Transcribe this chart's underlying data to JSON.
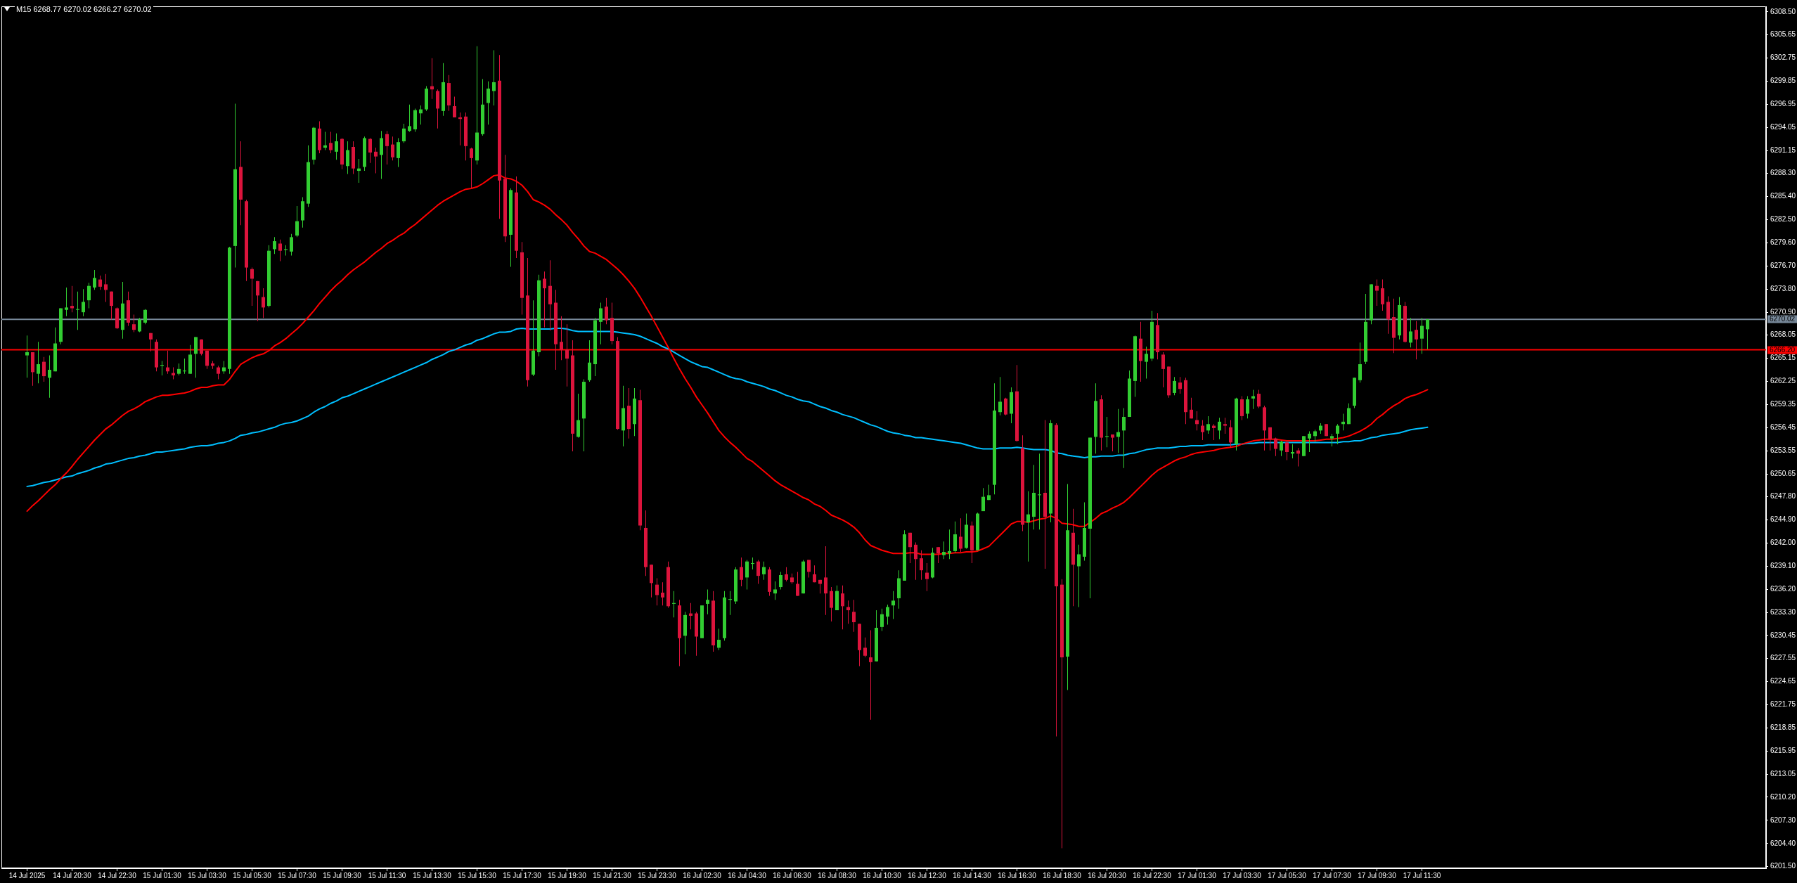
{
  "chart_data": {
    "type": "candlestick",
    "title": "M15 6268.77 6270.02 6266.27 6270.02",
    "categories": [
      "14 Jul 2025",
      null,
      null,
      null,
      null,
      null,
      null,
      null,
      "14 Jul 20:30",
      null,
      null,
      null,
      null,
      null,
      null,
      null,
      "14 Jul 22:30",
      null,
      null,
      null,
      null,
      null,
      null,
      null,
      "15 Jul 01:30",
      null,
      null,
      null,
      null,
      null,
      null,
      null,
      "15 Jul 03:30",
      null,
      null,
      null,
      null,
      null,
      null,
      null,
      "15 Jul 05:30",
      null,
      null,
      null,
      null,
      null,
      null,
      null,
      "15 Jul 07:30",
      null,
      null,
      null,
      null,
      null,
      null,
      null,
      "15 Jul 09:30",
      null,
      null,
      null,
      null,
      null,
      null,
      null,
      "15 Jul 11:30",
      null,
      null,
      null,
      null,
      null,
      null,
      null,
      "15 Jul 13:30",
      null,
      null,
      null,
      null,
      null,
      null,
      null,
      "15 Jul 15:30",
      null,
      null,
      null,
      null,
      null,
      null,
      null,
      "15 Jul 17:30",
      null,
      null,
      null,
      null,
      null,
      null,
      null,
      "15 Jul 19:30",
      null,
      null,
      null,
      null,
      null,
      null,
      null,
      "15 Jul 21:30",
      null,
      null,
      null,
      null,
      null,
      null,
      null,
      "15 Jul 23:30",
      null,
      null,
      null,
      null,
      null,
      null,
      null,
      "16 Jul 02:30",
      null,
      null,
      null,
      null,
      null,
      null,
      null,
      "16 Jul 04:30",
      null,
      null,
      null,
      null,
      null,
      null,
      null,
      "16 Jul 06:30",
      null,
      null,
      null,
      null,
      null,
      null,
      null,
      "16 Jul 08:30",
      null,
      null,
      null,
      null,
      null,
      null,
      null,
      "16 Jul 10:30",
      null,
      null,
      null,
      null,
      null,
      null,
      null,
      "16 Jul 12:30",
      null,
      null,
      null,
      null,
      null,
      null,
      null,
      "16 Jul 14:30",
      null,
      null,
      null,
      null,
      null,
      null,
      null,
      "16 Jul 16:30",
      null,
      null,
      null,
      null,
      null,
      null,
      null,
      "16 Jul 18:30",
      null,
      null,
      null,
      null,
      null,
      null,
      null,
      "16 Jul 20:30",
      null,
      null,
      null,
      null,
      null,
      null,
      null,
      "16 Jul 22:30",
      null,
      null,
      null,
      null,
      null,
      null,
      null,
      "17 Jul 01:30",
      null,
      null,
      null,
      null,
      null,
      null,
      null,
      "17 Jul 03:30",
      null,
      null,
      null,
      null,
      null,
      null,
      null,
      "17 Jul 05:30",
      null,
      null,
      null,
      null,
      null,
      null,
      null,
      "17 Jul 07:30",
      null,
      null,
      null,
      null,
      null,
      null,
      null,
      "17 Jul 09:30",
      null,
      null,
      null,
      null,
      null,
      null,
      null,
      "17 Jul 11:30",
      null
    ],
    "ohlc": [
      [
        6265.5,
        6268.0,
        6262.7,
        6265.9
      ],
      [
        6265.9,
        6265.9,
        6261.7,
        6263.4
      ],
      [
        6263.2,
        6267.2,
        6262.0,
        6264.4
      ],
      [
        6264.7,
        6265.3,
        6262.2,
        6262.9
      ],
      [
        6262.7,
        6265.5,
        6260.2,
        6263.7
      ],
      [
        6263.5,
        6269.0,
        6263.5,
        6267.0
      ],
      [
        6267.2,
        6271.4,
        6266.9,
        6271.4
      ],
      [
        6271.2,
        6274.0,
        6270.4,
        6271.5
      ],
      [
        6271.7,
        6274.2,
        6270.9,
        6271.4
      ],
      [
        6271.2,
        6273.5,
        6268.7,
        6271.3
      ],
      [
        6270.9,
        6273.8,
        6270.4,
        6272.2
      ],
      [
        6272.4,
        6274.6,
        6271.4,
        6274.2
      ],
      [
        6274.0,
        6276.2,
        6273.7,
        6275.2
      ],
      [
        6275.0,
        6275.5,
        6273.7,
        6274.1
      ],
      [
        6274.4,
        6275.7,
        6272.2,
        6273.7
      ],
      [
        6273.5,
        6273.5,
        6270.0,
        6271.7
      ],
      [
        6271.4,
        6271.5,
        6268.8,
        6268.9
      ],
      [
        6268.7,
        6274.7,
        6267.6,
        6272.0
      ],
      [
        6272.4,
        6273.5,
        6269.2,
        6269.6
      ],
      [
        6269.4,
        6270.6,
        6268.4,
        6268.7
      ],
      [
        6268.5,
        6270.2,
        6268.4,
        6270.0
      ],
      [
        6269.6,
        6271.3,
        6269.4,
        6271.2
      ],
      [
        6268.3,
        6268.3,
        6266.0,
        6267.5
      ],
      [
        6267.2,
        6267.5,
        6263.5,
        6264.0
      ],
      [
        6264.2,
        6264.8,
        6263.0,
        6264.3
      ],
      [
        6264.0,
        6266.1,
        6263.2,
        6263.5
      ],
      [
        6263.3,
        6264.0,
        6262.5,
        6263.0
      ],
      [
        6263.2,
        6264.5,
        6263.0,
        6263.8
      ],
      [
        6263.5,
        6265.1,
        6263.2,
        6263.6
      ],
      [
        6263.2,
        6266.8,
        6263.2,
        6265.6
      ],
      [
        6265.7,
        6267.8,
        6262.7,
        6267.8
      ],
      [
        6267.5,
        6267.5,
        6265.5,
        6265.7
      ],
      [
        6266.1,
        6266.1,
        6263.8,
        6264.2
      ],
      [
        6264.5,
        6264.8,
        6263.8,
        6264.2
      ],
      [
        6264.0,
        6264.2,
        6262.5,
        6263.2
      ],
      [
        6263.5,
        6264.8,
        6263.2,
        6264.0
      ],
      [
        6263.8,
        6279.1,
        6263.2,
        6279.0
      ],
      [
        6279.2,
        6297.0,
        6276.5,
        6288.8
      ],
      [
        6289.1,
        6292.3,
        6281.8,
        6285.0
      ],
      [
        6284.8,
        6285.0,
        6274.8,
        6276.5
      ],
      [
        6276.3,
        6276.5,
        6271.7,
        6275.1
      ],
      [
        6274.8,
        6274.8,
        6269.8,
        6273.0
      ],
      [
        6272.8,
        6273.9,
        6270.2,
        6271.5
      ],
      [
        6271.7,
        6279.3,
        6271.5,
        6278.6
      ],
      [
        6278.8,
        6280.3,
        6278.2,
        6279.8
      ],
      [
        6279.5,
        6280.0,
        6277.3,
        6278.6
      ],
      [
        6278.7,
        6279.3,
        6278.0,
        6278.8
      ],
      [
        6278.5,
        6280.7,
        6278.0,
        6280.3
      ],
      [
        6280.5,
        6284.2,
        6280.3,
        6282.3
      ],
      [
        6282.4,
        6285.3,
        6281.5,
        6284.8
      ],
      [
        6284.5,
        6291.8,
        6284.1,
        6289.7
      ],
      [
        6290.0,
        6294.1,
        6289.4,
        6294.0
      ],
      [
        6293.9,
        6294.8,
        6290.8,
        6291.2
      ],
      [
        6291.5,
        6293.5,
        6291.2,
        6291.8
      ],
      [
        6292.1,
        6293.5,
        6290.8,
        6291.2
      ],
      [
        6291.0,
        6293.3,
        6290.0,
        6292.3
      ],
      [
        6292.6,
        6292.7,
        6288.8,
        6289.4
      ],
      [
        6289.2,
        6292.3,
        6288.2,
        6291.2
      ],
      [
        6291.6,
        6292.3,
        6288.2,
        6288.9
      ],
      [
        6288.6,
        6290.1,
        6287.1,
        6288.9
      ],
      [
        6289.1,
        6292.9,
        6288.6,
        6292.7
      ],
      [
        6292.6,
        6292.7,
        6289.6,
        6290.9
      ],
      [
        6291.0,
        6291.5,
        6288.3,
        6290.4
      ],
      [
        6290.6,
        6293.6,
        6287.6,
        6292.7
      ],
      [
        6293.2,
        6293.6,
        6289.4,
        6291.7
      ],
      [
        6291.9,
        6292.9,
        6289.9,
        6290.3
      ],
      [
        6290.2,
        6292.7,
        6289.1,
        6292.2
      ],
      [
        6292.3,
        6294.5,
        6292.1,
        6293.9
      ],
      [
        6293.6,
        6296.9,
        6293.5,
        6294.2
      ],
      [
        6293.8,
        6296.4,
        6293.5,
        6296.2
      ],
      [
        6295.8,
        6296.8,
        6294.4,
        6296.3
      ],
      [
        6296.3,
        6299.2,
        6296.1,
        6298.9
      ],
      [
        6299.2,
        6302.7,
        6297.6,
        6298.8
      ],
      [
        6298.6,
        6298.8,
        6293.9,
        6296.4
      ],
      [
        6296.1,
        6302.1,
        6295.5,
        6299.7
      ],
      [
        6299.6,
        6300.6,
        6296.1,
        6296.8
      ],
      [
        6296.7,
        6297.9,
        6295.3,
        6295.3
      ],
      [
        6295.3,
        6295.9,
        6291.8,
        6295.1
      ],
      [
        6295.4,
        6295.9,
        6289.9,
        6291.7
      ],
      [
        6291.4,
        6291.5,
        6286.5,
        6290.2
      ],
      [
        6289.9,
        6304.2,
        6289.4,
        6293.4
      ],
      [
        6293.2,
        6300.1,
        6293.0,
        6296.9
      ],
      [
        6297.1,
        6299.8,
        6294.4,
        6298.9
      ],
      [
        6298.6,
        6303.7,
        6296.8,
        6299.7
      ],
      [
        6299.9,
        6303.1,
        6282.6,
        6287.4
      ],
      [
        6287.6,
        6290.6,
        6279.7,
        6280.4
      ],
      [
        6280.6,
        6286.4,
        6276.6,
        6286.2
      ],
      [
        6285.9,
        6287.9,
        6277.7,
        6278.6
      ],
      [
        6278.4,
        6279.7,
        6270.6,
        6272.7
      ],
      [
        6273.0,
        6277.7,
        6261.6,
        6262.4
      ],
      [
        6263.1,
        6272.4,
        6262.9,
        6266.1
      ],
      [
        6265.9,
        6275.6,
        6265.4,
        6274.9
      ],
      [
        6275.1,
        6276.0,
        6269.0,
        6273.9
      ],
      [
        6274.2,
        6277.4,
        6268.6,
        6271.9
      ],
      [
        6272.1,
        6273.7,
        6263.7,
        6266.9
      ],
      [
        6267.2,
        6270.4,
        6264.9,
        6266.2
      ],
      [
        6266.2,
        6269.4,
        6261.6,
        6265.1
      ],
      [
        6265.5,
        6267.4,
        6253.5,
        6255.7
      ],
      [
        6255.3,
        6260.7,
        6255.2,
        6257.4
      ],
      [
        6257.6,
        6262.5,
        6253.5,
        6262.2
      ],
      [
        6262.4,
        6267.4,
        6262.2,
        6264.6
      ],
      [
        6264.4,
        6270.2,
        6262.9,
        6269.9
      ],
      [
        6269.7,
        6272.1,
        6266.9,
        6271.4
      ],
      [
        6271.6,
        6272.7,
        6269.4,
        6269.9
      ],
      [
        6270.2,
        6272.1,
        6266.9,
        6267.3
      ],
      [
        6267.3,
        6267.8,
        6256.2,
        6256.3
      ],
      [
        6256.1,
        6261.7,
        6254.1,
        6258.9
      ],
      [
        6259.2,
        6261.4,
        6255.1,
        6256.3
      ],
      [
        6256.9,
        6261.4,
        6255.4,
        6260.1
      ],
      [
        6259.9,
        6261.2,
        6243.6,
        6244.2
      ],
      [
        6243.9,
        6246.1,
        6237.9,
        6239.0
      ],
      [
        6239.3,
        6239.3,
        6235.2,
        6237.0
      ],
      [
        6236.8,
        6237.6,
        6234.2,
        6235.5
      ],
      [
        6235.8,
        6237.1,
        6234.2,
        6235.2
      ],
      [
        6239.0,
        6239.7,
        6233.9,
        6234.1
      ],
      [
        6234.4,
        6236.0,
        6232.7,
        6234.5
      ],
      [
        6234.2,
        6234.9,
        6226.6,
        6230.1
      ],
      [
        6230.4,
        6233.4,
        6228.1,
        6233.0
      ],
      [
        6233.2,
        6234.5,
        6231.2,
        6232.9
      ],
      [
        6233.2,
        6233.4,
        6227.9,
        6230.3
      ],
      [
        6230.1,
        6234.2,
        6230.1,
        6234.2
      ],
      [
        6234.4,
        6236.2,
        6233.1,
        6234.9
      ],
      [
        6234.8,
        6236.0,
        6228.4,
        6229.2
      ],
      [
        6228.9,
        6231.3,
        6228.6,
        6229.9
      ],
      [
        6230.1,
        6236.0,
        6229.8,
        6235.2
      ],
      [
        6234.9,
        6236.0,
        6233.0,
        6235.0
      ],
      [
        6234.7,
        6239.0,
        6234.4,
        6238.7
      ],
      [
        6239.0,
        6240.2,
        6236.6,
        6237.4
      ],
      [
        6237.7,
        6239.9,
        6236.2,
        6239.7
      ],
      [
        6239.4,
        6240.2,
        6238.7,
        6239.5
      ],
      [
        6239.7,
        6239.9,
        6236.9,
        6237.9
      ],
      [
        6238.1,
        6239.7,
        6237.4,
        6239.0
      ],
      [
        6238.7,
        6239.0,
        6235.4,
        6235.9
      ],
      [
        6235.7,
        6237.2,
        6234.9,
        6236.2
      ],
      [
        6236.5,
        6238.4,
        6236.2,
        6238.0
      ],
      [
        6238.1,
        6239.0,
        6237.2,
        6237.4
      ],
      [
        6237.7,
        6238.2,
        6236.9,
        6237.1
      ],
      [
        6236.9,
        6238.4,
        6235.4,
        6235.4
      ],
      [
        6235.7,
        6239.9,
        6235.7,
        6239.7
      ],
      [
        6239.9,
        6239.9,
        6237.7,
        6238.4
      ],
      [
        6238.1,
        6239.2,
        6237.1,
        6237.1
      ],
      [
        6237.4,
        6237.4,
        6235.7,
        6236.9
      ],
      [
        6237.7,
        6241.6,
        6233.0,
        6235.7
      ],
      [
        6236.0,
        6236.5,
        6232.2,
        6233.9
      ],
      [
        6233.6,
        6236.7,
        6233.6,
        6236.0
      ],
      [
        6235.7,
        6236.7,
        6231.2,
        6234.1
      ],
      [
        6234.0,
        6234.8,
        6231.9,
        6233.6
      ],
      [
        6233.4,
        6234.9,
        6230.9,
        6232.1
      ],
      [
        6231.9,
        6231.9,
        6226.6,
        6228.6
      ],
      [
        6228.9,
        6230.2,
        6227.7,
        6227.9
      ],
      [
        6227.7,
        6231.1,
        6219.9,
        6227.1
      ],
      [
        6227.2,
        6233.6,
        6227.2,
        6231.4
      ],
      [
        6231.5,
        6233.8,
        6231.0,
        6233.1
      ],
      [
        6232.8,
        6234.3,
        6231.8,
        6234.0
      ],
      [
        6234.2,
        6236.0,
        6232.5,
        6234.8
      ],
      [
        6235.1,
        6238.6,
        6233.8,
        6237.6
      ],
      [
        6237.3,
        6243.6,
        6237.3,
        6243.1
      ],
      [
        6243.3,
        6243.3,
        6239.5,
        6241.5
      ],
      [
        6241.8,
        6242.1,
        6237.4,
        6240.0
      ],
      [
        6240.1,
        6241.1,
        6237.4,
        6238.6
      ],
      [
        6238.3,
        6239.5,
        6236.0,
        6237.5
      ],
      [
        6237.7,
        6241.4,
        6237.6,
        6240.8
      ],
      [
        6241.5,
        6241.5,
        6239.5,
        6240.7
      ],
      [
        6240.5,
        6242.2,
        6240.0,
        6240.9
      ],
      [
        6240.7,
        6243.7,
        6240.0,
        6241.0
      ],
      [
        6241.0,
        6244.7,
        6240.8,
        6243.1
      ],
      [
        6242.8,
        6245.1,
        6240.9,
        6241.3
      ],
      [
        6241.4,
        6245.7,
        6241.3,
        6244.3
      ],
      [
        6244.2,
        6244.7,
        6239.5,
        6241.1
      ],
      [
        6241.1,
        6245.8,
        6241.1,
        6245.7
      ],
      [
        6246.0,
        6248.9,
        6246.0,
        6247.8
      ],
      [
        6247.4,
        6249.3,
        6247.4,
        6248.0
      ],
      [
        6249.3,
        6262.0,
        6248.1,
        6258.6
      ],
      [
        6258.4,
        6262.8,
        6258.0,
        6259.7
      ],
      [
        6260.1,
        6260.2,
        6258.0,
        6258.1
      ],
      [
        6258.2,
        6261.5,
        6257.0,
        6260.9
      ],
      [
        6261.0,
        6264.3,
        6254.7,
        6254.8
      ],
      [
        6253.9,
        6255.5,
        6243.5,
        6244.3
      ],
      [
        6244.6,
        6248.5,
        6239.7,
        6245.6
      ],
      [
        6245.3,
        6251.8,
        6243.7,
        6248.3
      ],
      [
        6248.0,
        6253.2,
        6243.7,
        6248.1
      ],
      [
        6248.3,
        6257.4,
        6238.8,
        6245.3
      ],
      [
        6245.7,
        6257.4,
        6244.6,
        6257.0
      ],
      [
        6256.8,
        6257.0,
        6217.8,
        6236.6
      ],
      [
        6236.8,
        6237.5,
        6203.8,
        6227.7
      ],
      [
        6227.8,
        6249.4,
        6223.6,
        6243.6
      ],
      [
        6243.3,
        6246.3,
        6234.1,
        6239.3
      ],
      [
        6239.1,
        6241.8,
        6234.0,
        6240.6
      ],
      [
        6240.3,
        6247.1,
        6239.8,
        6243.9
      ],
      [
        6243.8,
        6255.2,
        6235.1,
        6255.2
      ],
      [
        6255.3,
        6262.0,
        6253.2,
        6259.8
      ],
      [
        6260.0,
        6260.5,
        6253.6,
        6255.2
      ],
      [
        6255.3,
        6257.8,
        6254.0,
        6255.4
      ],
      [
        6255.6,
        6255.6,
        6253.5,
        6255.2
      ],
      [
        6255.3,
        6258.8,
        6253.3,
        6255.9
      ],
      [
        6256.1,
        6258.9,
        6251.4,
        6257.8
      ],
      [
        6257.8,
        6263.6,
        6257.8,
        6262.6
      ],
      [
        6262.3,
        6268.0,
        6260.3,
        6267.9
      ],
      [
        6267.6,
        6269.7,
        6262.2,
        6264.8
      ],
      [
        6264.7,
        6266.6,
        6262.6,
        6265.7
      ],
      [
        6265.1,
        6271.1,
        6264.8,
        6269.7
      ],
      [
        6269.3,
        6270.8,
        6265.0,
        6265.9
      ],
      [
        6265.6,
        6265.9,
        6261.5,
        6263.8
      ],
      [
        6264.1,
        6264.1,
        6260.2,
        6260.5
      ],
      [
        6260.8,
        6262.8,
        6260.5,
        6262.3
      ],
      [
        6262.1,
        6262.8,
        6260.7,
        6261.3
      ],
      [
        6262.4,
        6262.7,
        6256.9,
        6258.4
      ],
      [
        6258.7,
        6260.2,
        6257.6,
        6257.6
      ],
      [
        6257.4,
        6258.5,
        6256.1,
        6256.9
      ],
      [
        6256.7,
        6257.4,
        6254.9,
        6255.9
      ],
      [
        6256.1,
        6257.9,
        6255.7,
        6256.9
      ],
      [
        6256.7,
        6256.9,
        6254.9,
        6256.4
      ],
      [
        6256.1,
        6257.7,
        6255.0,
        6257.2
      ],
      [
        6256.9,
        6257.7,
        6255.7,
        6256.7
      ],
      [
        6256.5,
        6257.4,
        6254.0,
        6254.6
      ],
      [
        6254.4,
        6260.2,
        6253.6,
        6260.1
      ],
      [
        6260.0,
        6260.4,
        6257.4,
        6257.9
      ],
      [
        6258.2,
        6260.4,
        6257.6,
        6260.0
      ],
      [
        6260.1,
        6261.2,
        6258.8,
        6260.4
      ],
      [
        6260.7,
        6261.2,
        6258.9,
        6259.1
      ],
      [
        6259.0,
        6259.2,
        6253.6,
        6256.1
      ],
      [
        6256.5,
        6256.5,
        6253.6,
        6255.0
      ],
      [
        6255.1,
        6255.2,
        6252.9,
        6253.8
      ],
      [
        6253.6,
        6254.8,
        6252.9,
        6254.7
      ],
      [
        6254.6,
        6254.7,
        6252.4,
        6253.4
      ],
      [
        6253.2,
        6254.4,
        6252.6,
        6253.4
      ],
      [
        6253.6,
        6253.9,
        6251.6,
        6253.2
      ],
      [
        6252.9,
        6255.4,
        6252.9,
        6255.4
      ],
      [
        6255.1,
        6256.0,
        6253.4,
        6255.7
      ],
      [
        6255.4,
        6256.2,
        6254.7,
        6256.0
      ],
      [
        6256.1,
        6257.0,
        6255.7,
        6256.7
      ],
      [
        6256.9,
        6256.9,
        6255.4,
        6255.4
      ],
      [
        6255.1,
        6255.7,
        6254.1,
        6255.4
      ],
      [
        6255.7,
        6256.9,
        6254.4,
        6256.7
      ],
      [
        6256.9,
        6258.2,
        6256.1,
        6257.2
      ],
      [
        6256.9,
        6259.5,
        6256.9,
        6258.9
      ],
      [
        6259.2,
        6262.7,
        6258.9,
        6262.7
      ],
      [
        6262.4,
        6267.1,
        6262.1,
        6264.4
      ],
      [
        6264.7,
        6273.2,
        6264.4,
        6269.7
      ],
      [
        6269.9,
        6274.4,
        6269.4,
        6274.4
      ],
      [
        6274.2,
        6275.0,
        6271.7,
        6273.6
      ],
      [
        6273.9,
        6275.0,
        6271.1,
        6271.9
      ],
      [
        6272.2,
        6272.9,
        6268.2,
        6270.0
      ],
      [
        6270.3,
        6272.6,
        6265.8,
        6267.7
      ],
      [
        6268.0,
        6272.8,
        6267.5,
        6271.8
      ],
      [
        6271.7,
        6272.2,
        6267.1,
        6267.2
      ],
      [
        6267.1,
        6270.2,
        6266.5,
        6268.5
      ],
      [
        6268.7,
        6269.8,
        6265.0,
        6267.5
      ],
      [
        6267.6,
        6270.2,
        6265.7,
        6269.2
      ],
      [
        6268.77,
        6270.02,
        6266.27,
        6270.02
      ]
    ],
    "colors": [
      "#32cd32",
      "#dc143c",
      "#32cd32",
      "#dc143c",
      "#32cd32",
      "#32cd32",
      "#32cd32",
      "#32cd32",
      "#dc143c",
      "#32cd32",
      "#32cd32",
      "#32cd32",
      "#32cd32",
      "#dc143c",
      "#dc143c",
      "#dc143c",
      "#dc143c",
      "#32cd32",
      "#dc143c",
      "#dc143c",
      "#32cd32",
      "#32cd32",
      "#dc143c",
      "#dc143c",
      "#32cd32",
      "#dc143c",
      "#dc143c",
      "#32cd32",
      "#32cd32",
      "#32cd32",
      "#32cd32",
      "#dc143c",
      "#dc143c",
      "#dc143c",
      "#dc143c",
      "#32cd32",
      "#32cd32",
      "#32cd32",
      "#dc143c",
      "#dc143c",
      "#dc143c",
      "#dc143c",
      "#dc143c",
      "#32cd32",
      "#32cd32",
      "#dc143c",
      "#32cd32",
      "#32cd32",
      "#32cd32",
      "#32cd32",
      "#32cd32",
      "#32cd32",
      "#dc143c",
      "#32cd32",
      "#dc143c",
      "#32cd32",
      "#dc143c",
      "#32cd32",
      "#dc143c",
      "#32cd32",
      "#32cd32",
      "#dc143c",
      "#dc143c",
      "#32cd32",
      "#dc143c",
      "#dc143c",
      "#32cd32",
      "#32cd32",
      "#32cd32",
      "#32cd32",
      "#32cd32",
      "#32cd32",
      "#dc143c",
      "#dc143c",
      "#32cd32",
      "#dc143c",
      "#dc143c",
      "#dc143c",
      "#dc143c",
      "#dc143c",
      "#32cd32",
      "#32cd32",
      "#32cd32",
      "#32cd32",
      "#dc143c",
      "#dc143c",
      "#32cd32",
      "#dc143c",
      "#dc143c",
      "#dc143c",
      "#32cd32",
      "#32cd32",
      "#dc143c",
      "#dc143c",
      "#dc143c",
      "#dc143c",
      "#dc143c",
      "#dc143c",
      "#32cd32",
      "#32cd32",
      "#32cd32",
      "#32cd32",
      "#32cd32",
      "#dc143c",
      "#dc143c",
      "#dc143c",
      "#32cd32",
      "#dc143c",
      "#32cd32",
      "#dc143c",
      "#dc143c",
      "#dc143c",
      "#dc143c",
      "#dc143c",
      "#dc143c",
      "#32cd32",
      "#dc143c",
      "#32cd32",
      "#dc143c",
      "#dc143c",
      "#32cd32",
      "#32cd32",
      "#dc143c",
      "#32cd32",
      "#32cd32",
      "#32cd32",
      "#32cd32",
      "#dc143c",
      "#32cd32",
      "#32cd32",
      "#dc143c",
      "#32cd32",
      "#dc143c",
      "#32cd32",
      "#32cd32",
      "#dc143c",
      "#dc143c",
      "#dc143c",
      "#32cd32",
      "#dc143c",
      "#dc143c",
      "#dc143c",
      "#dc143c",
      "#dc143c",
      "#32cd32",
      "#dc143c",
      "#dc143c",
      "#dc143c",
      "#dc143c",
      "#dc143c",
      "#dc143c",
      "#32cd32",
      "#32cd32",
      "#32cd32",
      "#32cd32",
      "#32cd32",
      "#32cd32",
      "#dc143c",
      "#dc143c",
      "#dc143c",
      "#dc143c",
      "#32cd32",
      "#dc143c",
      "#32cd32",
      "#32cd32",
      "#32cd32",
      "#dc143c",
      "#32cd32",
      "#dc143c",
      "#32cd32",
      "#32cd32",
      "#32cd32",
      "#32cd32",
      "#32cd32",
      "#dc143c",
      "#32cd32",
      "#dc143c",
      "#dc143c",
      "#32cd32",
      "#32cd32",
      "#32cd32",
      "#dc143c",
      "#32cd32",
      "#dc143c",
      "#dc143c",
      "#32cd32",
      "#dc143c",
      "#32cd32",
      "#32cd32",
      "#32cd32",
      "#32cd32",
      "#dc143c",
      "#32cd32",
      "#dc143c",
      "#32cd32",
      "#32cd32",
      "#32cd32",
      "#32cd32",
      "#dc143c",
      "#32cd32",
      "#32cd32",
      "#dc143c",
      "#dc143c",
      "#dc143c",
      "#32cd32",
      "#dc143c",
      "#dc143c",
      "#dc143c",
      "#dc143c",
      "#dc143c",
      "#32cd32",
      "#dc143c",
      "#32cd32",
      "#dc143c",
      "#dc143c",
      "#32cd32",
      "#dc143c",
      "#32cd32",
      "#32cd32",
      "#dc143c",
      "#dc143c",
      "#dc143c",
      "#dc143c",
      "#32cd32",
      "#dc143c",
      "#32cd32",
      "#dc143c",
      "#32cd32",
      "#32cd32",
      "#32cd32",
      "#32cd32",
      "#dc143c",
      "#32cd32",
      "#32cd32",
      "#32cd32",
      "#32cd32",
      "#32cd32",
      "#32cd32",
      "#32cd32",
      "#32cd32",
      "#dc143c",
      "#dc143c",
      "#dc143c",
      "#dc143c",
      "#32cd32",
      "#dc143c",
      "#32cd32",
      "#dc143c",
      "#32cd32",
      "#32cd32"
    ],
    "series": [
      {
        "type": "line",
        "color": "#ff0000",
        "values": [
          6246.0,
          6246.7,
          6247.3,
          6248.0,
          6248.7,
          6249.3,
          6250.1,
          6250.8,
          6251.6,
          6252.5,
          6253.3,
          6254.1,
          6254.9,
          6255.6,
          6256.3,
          6256.8,
          6257.4,
          6258.0,
          6258.5,
          6258.8,
          6259.2,
          6259.7,
          6260.0,
          6260.3,
          6260.5,
          6260.5,
          6260.6,
          6260.7,
          6260.8,
          6261.0,
          6261.3,
          6261.5,
          6261.5,
          6261.7,
          6261.8,
          6261.8,
          6262.5,
          6263.5,
          6264.4,
          6264.8,
          6265.2,
          6265.5,
          6265.7,
          6266.1,
          6266.7,
          6267.1,
          6267.6,
          6268.2,
          6268.8,
          6269.5,
          6270.3,
          6271.1,
          6272.0,
          6272.8,
          6273.6,
          6274.3,
          6274.9,
          6275.6,
          6276.2,
          6276.7,
          6277.2,
          6277.8,
          6278.4,
          6278.9,
          6279.5,
          6279.9,
          6280.4,
          6280.8,
          6281.4,
          6281.9,
          6282.5,
          6283.1,
          6283.7,
          6284.3,
          6284.8,
          6285.2,
          6285.6,
          6286.0,
          6286.3,
          6286.4,
          6286.6,
          6287.0,
          6287.5,
          6288.0,
          6288.1,
          6287.7,
          6287.6,
          6287.3,
          6286.8,
          6286.0,
          6285.0,
          6284.7,
          6284.3,
          6283.8,
          6283.1,
          6282.5,
          6281.8,
          6280.9,
          6280.1,
          6279.2,
          6278.5,
          6278.3,
          6277.9,
          6277.5,
          6276.9,
          6276.3,
          6275.6,
          6274.8,
          6273.9,
          6272.8,
          6271.6,
          6270.4,
          6269.1,
          6267.8,
          6266.5,
          6265.1,
          6263.8,
          6262.6,
          6261.5,
          6260.3,
          6259.3,
          6258.3,
          6257.2,
          6256.1,
          6255.3,
          6254.6,
          6254.0,
          6253.3,
          6252.6,
          6252.2,
          6251.6,
          6251.0,
          6250.4,
          6249.8,
          6249.3,
          6248.9,
          6248.5,
          6248.1,
          6247.7,
          6247.4,
          6246.9,
          6246.6,
          6246.1,
          6245.5,
          6245.2,
          6244.9,
          6244.5,
          6244.0,
          6243.3,
          6242.4,
          6241.7,
          6241.4,
          6241.1,
          6240.9,
          6240.7,
          6240.7,
          6240.7,
          6240.8,
          6240.8,
          6240.6,
          6240.6,
          6240.6,
          6240.6,
          6240.7,
          6240.7,
          6240.8,
          6240.8,
          6240.9,
          6240.9,
          6241.0,
          6241.3,
          6241.6,
          6242.3,
          6243.0,
          6243.7,
          6244.4,
          6244.7,
          6244.7,
          6244.6,
          6244.8,
          6245.0,
          6245.1,
          6245.4,
          6245.1,
          6244.5,
          6244.4,
          6244.3,
          6244.1,
          6244.1,
          6244.6,
          6245.1,
          6245.7,
          6246.0,
          6246.4,
          6246.7,
          6247.1,
          6247.7,
          6248.4,
          6249.1,
          6249.8,
          6250.5,
          6251.1,
          6251.5,
          6251.9,
          6252.3,
          6252.6,
          6252.8,
          6253.1,
          6253.3,
          6253.4,
          6253.5,
          6253.6,
          6253.8,
          6253.9,
          6254.0,
          6254.1,
          6254.4,
          6254.6,
          6254.8,
          6254.9,
          6255.0,
          6255.0,
          6255.0,
          6254.9,
          6254.8,
          6254.8,
          6254.8,
          6254.8,
          6254.8,
          6254.8,
          6254.9,
          6255.0,
          6255.0,
          6255.1,
          6255.2,
          6255.4,
          6255.7,
          6256.0,
          6256.4,
          6256.9,
          6257.6,
          6258.1,
          6258.7,
          6259.2,
          6259.6,
          6260.1,
          6260.4,
          6260.6,
          6260.9,
          6261.2
        ]
      },
      {
        "type": "line",
        "color": "#00bfff",
        "values": [
          6249.1,
          6249.2,
          6249.4,
          6249.6,
          6249.7,
          6249.9,
          6250.1,
          6250.3,
          6250.4,
          6250.7,
          6250.9,
          6251.1,
          6251.4,
          6251.6,
          6251.9,
          6252.0,
          6252.2,
          6252.4,
          6252.6,
          6252.7,
          6252.9,
          6253.0,
          6253.2,
          6253.4,
          6253.4,
          6253.5,
          6253.6,
          6253.7,
          6253.8,
          6254.0,
          6254.1,
          6254.2,
          6254.2,
          6254.3,
          6254.5,
          6254.6,
          6254.8,
          6255.1,
          6255.5,
          6255.6,
          6255.8,
          6255.9,
          6256.1,
          6256.3,
          6256.5,
          6256.8,
          6257.0,
          6257.1,
          6257.3,
          6257.6,
          6257.9,
          6258.4,
          6258.8,
          6259.1,
          6259.5,
          6259.8,
          6260.2,
          6260.4,
          6260.7,
          6261.0,
          6261.3,
          6261.6,
          6261.9,
          6262.2,
          6262.5,
          6262.8,
          6263.1,
          6263.4,
          6263.7,
          6264.0,
          6264.3,
          6264.6,
          6265.0,
          6265.3,
          6265.6,
          6266.0,
          6266.2,
          6266.5,
          6266.8,
          6267.0,
          6267.4,
          6267.6,
          6267.9,
          6268.2,
          6268.4,
          6268.4,
          6268.5,
          6268.8,
          6268.9,
          6268.8,
          6268.8,
          6268.8,
          6268.8,
          6268.8,
          6268.9,
          6268.9,
          6268.8,
          6268.6,
          6268.5,
          6268.5,
          6268.5,
          6268.5,
          6268.5,
          6268.5,
          6268.5,
          6268.4,
          6268.3,
          6268.2,
          6268.1,
          6267.9,
          6267.6,
          6267.3,
          6267.0,
          6266.6,
          6266.3,
          6265.9,
          6265.5,
          6265.1,
          6264.7,
          6264.4,
          6264.1,
          6264.0,
          6263.7,
          6263.4,
          6263.1,
          6262.8,
          6262.6,
          6262.5,
          6262.2,
          6262.0,
          6261.8,
          6261.6,
          6261.3,
          6261.1,
          6260.8,
          6260.5,
          6260.3,
          6260.0,
          6259.8,
          6259.7,
          6259.4,
          6259.1,
          6258.9,
          6258.6,
          6258.4,
          6258.1,
          6257.9,
          6257.7,
          6257.4,
          6257.1,
          6256.8,
          6256.6,
          6256.3,
          6256.0,
          6255.8,
          6255.7,
          6255.5,
          6255.4,
          6255.2,
          6255.2,
          6255.1,
          6255.0,
          6254.9,
          6254.8,
          6254.7,
          6254.6,
          6254.5,
          6254.3,
          6254.1,
          6253.9,
          6253.8,
          6253.8,
          6253.8,
          6253.9,
          6253.9,
          6253.9,
          6254.0,
          6253.9,
          6253.8,
          6253.7,
          6253.7,
          6253.7,
          6253.6,
          6253.3,
          6253.2,
          6253.0,
          6252.9,
          6252.8,
          6252.7,
          6252.8,
          6252.8,
          6252.9,
          6252.9,
          6252.9,
          6253.0,
          6253.0,
          6253.2,
          6253.3,
          6253.5,
          6253.7,
          6253.8,
          6253.9,
          6253.9,
          6253.9,
          6254.0,
          6254.1,
          6254.1,
          6254.2,
          6254.2,
          6254.2,
          6254.3,
          6254.3,
          6254.3,
          6254.3,
          6254.3,
          6254.4,
          6254.4,
          6254.5,
          6254.5,
          6254.6,
          6254.6,
          6254.6,
          6254.6,
          6254.6,
          6254.6,
          6254.6,
          6254.6,
          6254.6,
          6254.6,
          6254.6,
          6254.6,
          6254.6,
          6254.6,
          6254.6,
          6254.7,
          6254.7,
          6254.8,
          6254.8,
          6255.0,
          6255.2,
          6255.3,
          6255.5,
          6255.6,
          6255.7,
          6255.8,
          6256.0,
          6256.2,
          6256.3,
          6256.4,
          6256.5
        ]
      }
    ],
    "ylim": [
      6201.3,
      6309.2
    ],
    "yticks": [
      {
        "value": 6201.5,
        "label": "6201.50"
      },
      {
        "value": 6204.4,
        "label": "6204.40"
      },
      {
        "value": 6207.3,
        "label": "6207.30"
      },
      {
        "value": 6210.2,
        "label": "6210.20"
      },
      6213.05,
      6215.95,
      6218.85,
      6221.75,
      6224.65,
      6227.55,
      6230.45,
      {
        "value": 6233.3,
        "label": "6233.30"
      },
      {
        "value": 6236.2,
        "label": "6236.20"
      },
      {
        "value": 6239.1,
        "label": "6239.10"
      },
      {
        "value": 6242.0,
        "label": "6242.00"
      },
      {
        "value": 6244.9,
        "label": "6244.90"
      },
      {
        "value": 6247.8,
        "label": "6247.80"
      },
      6250.65,
      6253.55,
      6256.45,
      6259.35,
      6262.25,
      6265.15,
      6268.05,
      {
        "value": 6270.9,
        "label": "6270.90"
      },
      {
        "value": 6273.8,
        "label": "6273.80"
      },
      {
        "value": 6276.7,
        "label": "6276.70"
      },
      {
        "value": 6279.6,
        "label": "6279.60"
      },
      {
        "value": 6282.5,
        "label": "6282.50"
      },
      {
        "value": 6285.4,
        "label": "6285.40"
      },
      {
        "value": 6288.3,
        "label": "6288.30"
      },
      6291.15,
      6294.05,
      6296.95,
      6299.85,
      6302.75,
      6305.65,
      {
        "value": 6308.5,
        "label": "6308.50"
      }
    ],
    "ref_lines": [
      {
        "axis": "y",
        "value": 6270.02,
        "label": "6270.02",
        "color": "#778899"
      },
      {
        "axis": "y",
        "value": 6266.2,
        "label": "6266.20",
        "color": "#ff0000"
      }
    ],
    "grid": false,
    "legend": false
  }
}
